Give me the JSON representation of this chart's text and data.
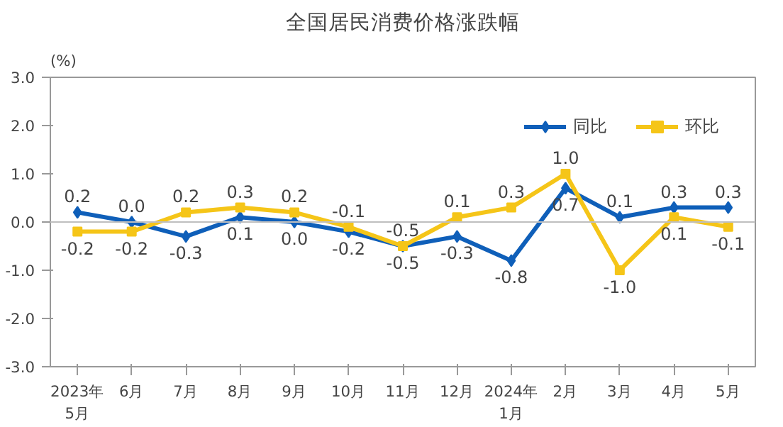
{
  "chart_data": {
    "type": "line",
    "title": "全国居民消费价格涨跌幅",
    "ylabel": "(%)",
    "categories": [
      "2023年\n5月",
      "6月",
      "7月",
      "8月",
      "9月",
      "10月",
      "11月",
      "12月",
      "2024年\n1月",
      "2月",
      "3月",
      "4月",
      "5月"
    ],
    "series": [
      {
        "name": "同比",
        "color": "#0f5fb9",
        "marker": "diamond",
        "values": [
          0.2,
          0.0,
          -0.3,
          0.1,
          0.0,
          -0.2,
          -0.5,
          -0.3,
          -0.8,
          0.7,
          0.1,
          0.3,
          0.3
        ],
        "value_labels": [
          "0.2",
          "0.0",
          "-0.3",
          "0.1",
          "0.0",
          "-0.2",
          "-0.5",
          "-0.3",
          "-0.8",
          "0.7",
          "0.1",
          "0.3",
          "0.3"
        ]
      },
      {
        "name": "环比",
        "color": "#f5c518",
        "marker": "square",
        "values": [
          -0.2,
          -0.2,
          0.2,
          0.3,
          0.2,
          -0.1,
          -0.5,
          0.1,
          0.3,
          1.0,
          -1.0,
          0.1,
          -0.1
        ],
        "value_labels": [
          "-0.2",
          "-0.2",
          "0.2",
          "0.3",
          "0.2",
          "-0.1",
          "-0.5",
          "0.1",
          "0.3",
          "1.0",
          "-1.0",
          "0.1",
          "-0.1"
        ]
      }
    ],
    "ylim": [
      -3.0,
      3.0
    ],
    "yticks": [
      {
        "value": -3,
        "label": "-3.0"
      },
      {
        "value": -2,
        "label": "-2.0"
      },
      {
        "value": -1,
        "label": "-1.0"
      },
      {
        "value": 0,
        "label": "0.0"
      },
      {
        "value": 1,
        "label": "1.0"
      },
      {
        "value": 2,
        "label": "2.0"
      },
      {
        "value": 3,
        "label": "3.0"
      }
    ],
    "ref_lines": [
      {
        "axis": "y",
        "value": 0,
        "color": "#bfbfbf"
      }
    ],
    "grid": false,
    "legend": "top right",
    "line_style": "solid"
  }
}
